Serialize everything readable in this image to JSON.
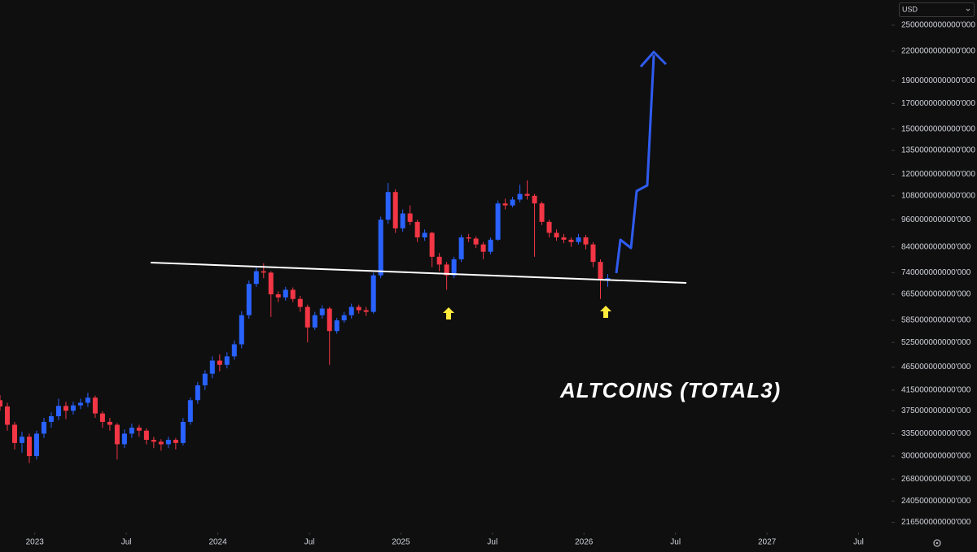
{
  "chart_data": {
    "type": "candlestick",
    "currency": "USD",
    "annotation": "ALTCOINS (TOTAL3)",
    "log_scale": true,
    "up_color": "#2962ff",
    "down_color": "#f23645",
    "xlim": [
      2022.81,
      2027.68
    ],
    "xticks": [
      2023,
      {
        "value": 2023.5,
        "label": "Jul"
      },
      2024,
      {
        "value": 2024.5,
        "label": "Jul"
      },
      2025,
      {
        "value": 2025.5,
        "label": "Jul"
      },
      2026,
      {
        "value": 2026.5,
        "label": "Jul"
      },
      2027,
      {
        "value": 2027.5,
        "label": "Jul"
      }
    ],
    "ylim": [
      206000000000000.0,
      2830000000000000.0
    ],
    "yticks": [
      {
        "value": 2500000000000000.0,
        "label": "2500000000000'000"
      },
      {
        "value": 2200000000000000.0,
        "label": "2200000000000'000"
      },
      {
        "value": 1900000000000000.0,
        "label": "1900000000000'000"
      },
      {
        "value": 1700000000000000.0,
        "label": "1700000000000'000"
      },
      {
        "value": 1500000000000000.0,
        "label": "1500000000000'000"
      },
      {
        "value": 1350000000000000.0,
        "label": "1350000000000'000"
      },
      {
        "value": 1200000000000000.0,
        "label": "1200000000000'000"
      },
      {
        "value": 1080000000000000.0,
        "label": "1080000000000'000"
      },
      {
        "value": 960000000000000.0,
        "label": "960000000000'000"
      },
      {
        "value": 840000000000000.0,
        "label": "840000000000'000"
      },
      {
        "value": 740000000000000.0,
        "label": "740000000000'000"
      },
      {
        "value": 665000000000000.0,
        "label": "665000000000'000"
      },
      {
        "value": 585000000000000.0,
        "label": "585000000000'000"
      },
      {
        "value": 525000000000000.0,
        "label": "525000000000'000"
      },
      {
        "value": 465000000000000.0,
        "label": "465000000000'000"
      },
      {
        "value": 415000000000000.0,
        "label": "415000000000'000"
      },
      {
        "value": 375000000000000.0,
        "label": "375000000000'000"
      },
      {
        "value": 335000000000000.0,
        "label": "335000000000'000"
      },
      {
        "value": 300000000000000.0,
        "label": "300000000000'000"
      },
      {
        "value": 268000000000000.0,
        "label": "268000000000'000"
      },
      {
        "value": 240500000000000.0,
        "label": "240500000000'000"
      },
      {
        "value": 216500000000000.0,
        "label": "216500000000'000"
      }
    ],
    "x": [
      2022.81,
      2022.85,
      2022.89,
      2022.93,
      2022.97,
      2023.01,
      2023.05,
      2023.09,
      2023.13,
      2023.17,
      2023.21,
      2023.25,
      2023.29,
      2023.33,
      2023.37,
      2023.41,
      2023.45,
      2023.49,
      2023.53,
      2023.57,
      2023.61,
      2023.65,
      2023.69,
      2023.73,
      2023.77,
      2023.81,
      2023.85,
      2023.89,
      2023.93,
      2023.97,
      2024.01,
      2024.05,
      2024.09,
      2024.13,
      2024.17,
      2024.21,
      2024.25,
      2024.29,
      2024.33,
      2024.37,
      2024.41,
      2024.45,
      2024.49,
      2024.53,
      2024.57,
      2024.61,
      2024.65,
      2024.69,
      2024.73,
      2024.77,
      2024.81,
      2024.85,
      2024.89,
      2024.93,
      2024.97,
      2025.01,
      2025.05,
      2025.09,
      2025.13,
      2025.17,
      2025.21,
      2025.25,
      2025.29,
      2025.33,
      2025.37,
      2025.41,
      2025.45,
      2025.49,
      2025.53,
      2025.57,
      2025.61,
      2025.65,
      2025.69,
      2025.73,
      2025.77,
      2025.81,
      2025.85,
      2025.89,
      2025.93,
      2025.97,
      2026.01,
      2026.05,
      2026.09,
      2026.13
    ],
    "open": [
      395000000000000.0,
      383000000000000.0,
      350000000000000.0,
      320000000000000.0,
      330000000000000.0,
      300000000000000.0,
      335000000000000.0,
      355000000000000.0,
      365000000000000.0,
      384000000000000.0,
      375000000000000.0,
      385000000000000.0,
      390000000000000.0,
      400000000000000.0,
      370000000000000.0,
      355000000000000.0,
      350000000000000.0,
      318000000000000.0,
      335000000000000.0,
      345000000000000.0,
      340000000000000.0,
      325000000000000.0,
      322000000000000.0,
      318000000000000.0,
      325000000000000.0,
      320000000000000.0,
      355000000000000.0,
      395000000000000.0,
      425000000000000.0,
      450000000000000.0,
      480000000000000.0,
      470000000000000.0,
      490000000000000.0,
      520000000000000.0,
      600000000000000.0,
      700000000000000.0,
      745000000000000.0,
      740000000000000.0,
      665000000000000.0,
      655000000000000.0,
      680000000000000.0,
      650000000000000.0,
      625000000000000.0,
      565000000000000.0,
      600000000000000.0,
      620000000000000.0,
      555000000000000.0,
      585000000000000.0,
      600000000000000.0,
      625000000000000.0,
      615000000000000.0,
      610000000000000.0,
      730000000000000.0,
      960000000000000.0,
      1100000000000000.0,
      920000000000000.0,
      990000000000000.0,
      950000000000000.0,
      880000000000000.0,
      900000000000000.0,
      800000000000000.0,
      770000000000000.0,
      730000000000000.0,
      790000000000000.0,
      880000000000000.0,
      875000000000000.0,
      850000000000000.0,
      820000000000000.0,
      870000000000000.0,
      1040000000000000.0,
      1030000000000000.0,
      1060000000000000.0,
      1090000000000000.0,
      1080000000000000.0,
      1040000000000000.0,
      950000000000000.0,
      900000000000000.0,
      880000000000000.0,
      870000000000000.0,
      860000000000000.0,
      880000000000000.0,
      850000000000000.0,
      780000000000000.0,
      715000000000000.0
    ],
    "high": [
      405000000000000.0,
      390000000000000.0,
      355000000000000.0,
      338000000000000.0,
      335000000000000.0,
      340000000000000.0,
      362000000000000.0,
      372000000000000.0,
      398000000000000.0,
      392000000000000.0,
      392000000000000.0,
      398000000000000.0,
      410000000000000.0,
      404000000000000.0,
      374000000000000.0,
      362000000000000.0,
      353000000000000.0,
      342000000000000.0,
      352000000000000.0,
      350000000000000.0,
      344000000000000.0,
      330000000000000.0,
      326000000000000.0,
      330000000000000.0,
      328000000000000.0,
      362000000000000.0,
      400000000000000.0,
      432000000000000.0,
      458000000000000.0,
      490000000000000.0,
      495000000000000.0,
      500000000000000.0,
      530000000000000.0,
      612000000000000.0,
      712000000000000.0,
      760000000000000.0,
      775000000000000.0,
      745000000000000.0,
      675000000000000.0,
      690000000000000.0,
      688000000000000.0,
      660000000000000.0,
      632000000000000.0,
      610000000000000.0,
      630000000000000.0,
      625000000000000.0,
      592000000000000.0,
      610000000000000.0,
      635000000000000.0,
      632000000000000.0,
      625000000000000.0,
      740000000000000.0,
      975000000000000.0,
      1150000000000000.0,
      1115000000000000.0,
      1010000000000000.0,
      1030000000000000.0,
      960000000000000.0,
      915000000000000.0,
      905000000000000.0,
      815000000000000.0,
      780000000000000.0,
      800000000000000.0,
      892000000000000.0,
      895000000000000.0,
      885000000000000.0,
      860000000000000.0,
      880000000000000.0,
      1055000000000000.0,
      1065000000000000.0,
      1075000000000000.0,
      1140000000000000.0,
      1165000000000000.0,
      1090000000000000.0,
      1050000000000000.0,
      960000000000000.0,
      915000000000000.0,
      895000000000000.0,
      880000000000000.0,
      895000000000000.0,
      890000000000000.0,
      860000000000000.0,
      790000000000000.0,
      735000000000000.0
    ],
    "low": [
      375000000000000.0,
      340000000000000.0,
      310000000000000.0,
      305000000000000.0,
      290000000000000.0,
      295000000000000.0,
      328000000000000.0,
      345000000000000.0,
      358000000000000.0,
      360000000000000.0,
      368000000000000.0,
      378000000000000.0,
      382000000000000.0,
      362000000000000.0,
      345000000000000.0,
      340000000000000.0,
      295000000000000.0,
      312000000000000.0,
      328000000000000.0,
      330000000000000.0,
      318000000000000.0,
      312000000000000.0,
      308000000000000.0,
      312000000000000.0,
      310000000000000.0,
      316000000000000.0,
      350000000000000.0,
      388000000000000.0,
      415000000000000.0,
      440000000000000.0,
      455000000000000.0,
      462000000000000.0,
      482000000000000.0,
      510000000000000.0,
      590000000000000.0,
      690000000000000.0,
      720000000000000.0,
      595000000000000.0,
      640000000000000.0,
      645000000000000.0,
      640000000000000.0,
      610000000000000.0,
      525000000000000.0,
      558000000000000.0,
      590000000000000.0,
      470000000000000.0,
      548000000000000.0,
      578000000000000.0,
      590000000000000.0,
      605000000000000.0,
      598000000000000.0,
      605000000000000.0,
      720000000000000.0,
      940000000000000.0,
      900000000000000.0,
      905000000000000.0,
      935000000000000.0,
      860000000000000.0,
      865000000000000.0,
      760000000000000.0,
      745000000000000.0,
      680000000000000.0,
      720000000000000.0,
      780000000000000.0,
      860000000000000.0,
      835000000000000.0,
      790000000000000.0,
      810000000000000.0,
      865000000000000.0,
      1010000000000000.0,
      1020000000000000.0,
      1045000000000000.0,
      1060000000000000.0,
      800000000000000.0,
      935000000000000.0,
      880000000000000.0,
      865000000000000.0,
      855000000000000.0,
      840000000000000.0,
      850000000000000.0,
      830000000000000.0,
      760000000000000.0,
      650000000000000.0,
      690000000000000.0
    ],
    "close": [
      383000000000000.0,
      350000000000000.0,
      320000000000000.0,
      330000000000000.0,
      300000000000000.0,
      335000000000000.0,
      355000000000000.0,
      365000000000000.0,
      384000000000000.0,
      375000000000000.0,
      385000000000000.0,
      390000000000000.0,
      400000000000000.0,
      370000000000000.0,
      355000000000000.0,
      350000000000000.0,
      318000000000000.0,
      335000000000000.0,
      345000000000000.0,
      340000000000000.0,
      325000000000000.0,
      322000000000000.0,
      318000000000000.0,
      325000000000000.0,
      320000000000000.0,
      355000000000000.0,
      395000000000000.0,
      425000000000000.0,
      450000000000000.0,
      480000000000000.0,
      470000000000000.0,
      490000000000000.0,
      520000000000000.0,
      600000000000000.0,
      700000000000000.0,
      745000000000000.0,
      740000000000000.0,
      665000000000000.0,
      655000000000000.0,
      680000000000000.0,
      650000000000000.0,
      625000000000000.0,
      565000000000000.0,
      600000000000000.0,
      620000000000000.0,
      555000000000000.0,
      585000000000000.0,
      600000000000000.0,
      625000000000000.0,
      615000000000000.0,
      610000000000000.0,
      730000000000000.0,
      960000000000000.0,
      1100000000000000.0,
      920000000000000.0,
      990000000000000.0,
      950000000000000.0,
      880000000000000.0,
      900000000000000.0,
      800000000000000.0,
      770000000000000.0,
      730000000000000.0,
      790000000000000.0,
      880000000000000.0,
      875000000000000.0,
      850000000000000.0,
      820000000000000.0,
      870000000000000.0,
      1040000000000000.0,
      1030000000000000.0,
      1060000000000000.0,
      1090000000000000.0,
      1080000000000000.0,
      1040000000000000.0,
      950000000000000.0,
      900000000000000.0,
      880000000000000.0,
      870000000000000.0,
      860000000000000.0,
      880000000000000.0,
      850000000000000.0,
      780000000000000.0,
      715000000000000.0,
      720000000000000.0
    ]
  }
}
